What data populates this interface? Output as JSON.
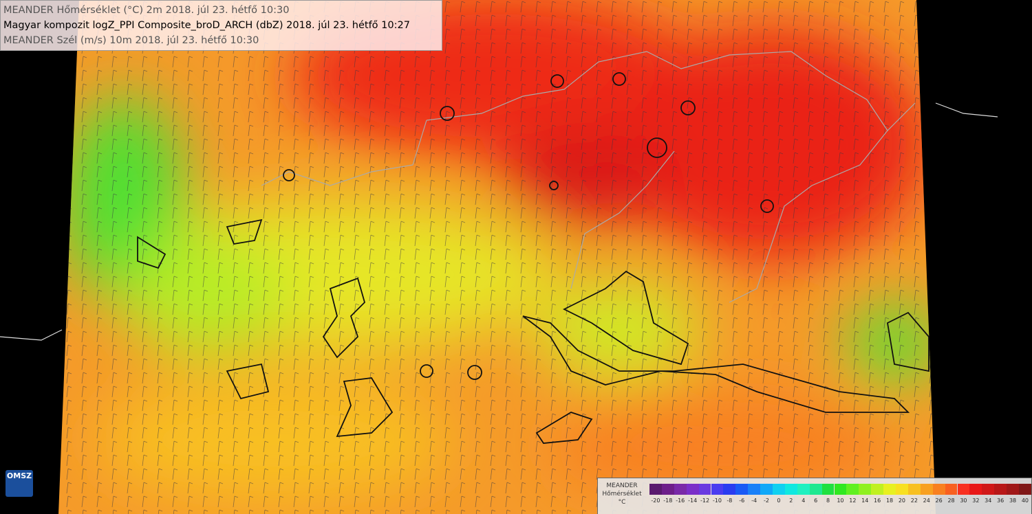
{
  "header": {
    "lines": [
      "MEANDER Hőmérséklet (°C) 2m 2018. júl 23. hétfő 10:30",
      "Magyar kompozit logZ_PPI Composite_broD_ARCH (dbZ) 2018. júl 23. hétfő 10:27",
      "MEANDER Szél (m/s) 10m 2018. júl 23. hétfő 10:30"
    ]
  },
  "legend": {
    "title": [
      "MEANDER",
      "Hőmérséklet",
      "°C"
    ],
    "ticks": [
      -20,
      -18,
      -16,
      -14,
      -12,
      -10,
      -8,
      -6,
      -4,
      -2,
      0,
      2,
      4,
      6,
      8,
      10,
      12,
      14,
      16,
      18,
      20,
      22,
      24,
      26,
      28,
      30,
      32,
      34,
      36,
      38,
      40
    ],
    "colors": [
      "#5a1a6e",
      "#6e1f8a",
      "#7a2aa8",
      "#7b2fc8",
      "#6a3ae0",
      "#4a3cf0",
      "#2a3cf0",
      "#1a5af5",
      "#1a80f8",
      "#10a8f8",
      "#10d0f0",
      "#10e8e0",
      "#20f0c0",
      "#20e890",
      "#20e040",
      "#30e820",
      "#60f020",
      "#90f020",
      "#c0f020",
      "#e8f020",
      "#f8e020",
      "#f8c020",
      "#f8a020",
      "#f88020",
      "#f86020",
      "#f83020",
      "#e81818",
      "#d01818",
      "#b81818",
      "#a01818",
      "#801818"
    ]
  },
  "logo": "OMSZ"
}
